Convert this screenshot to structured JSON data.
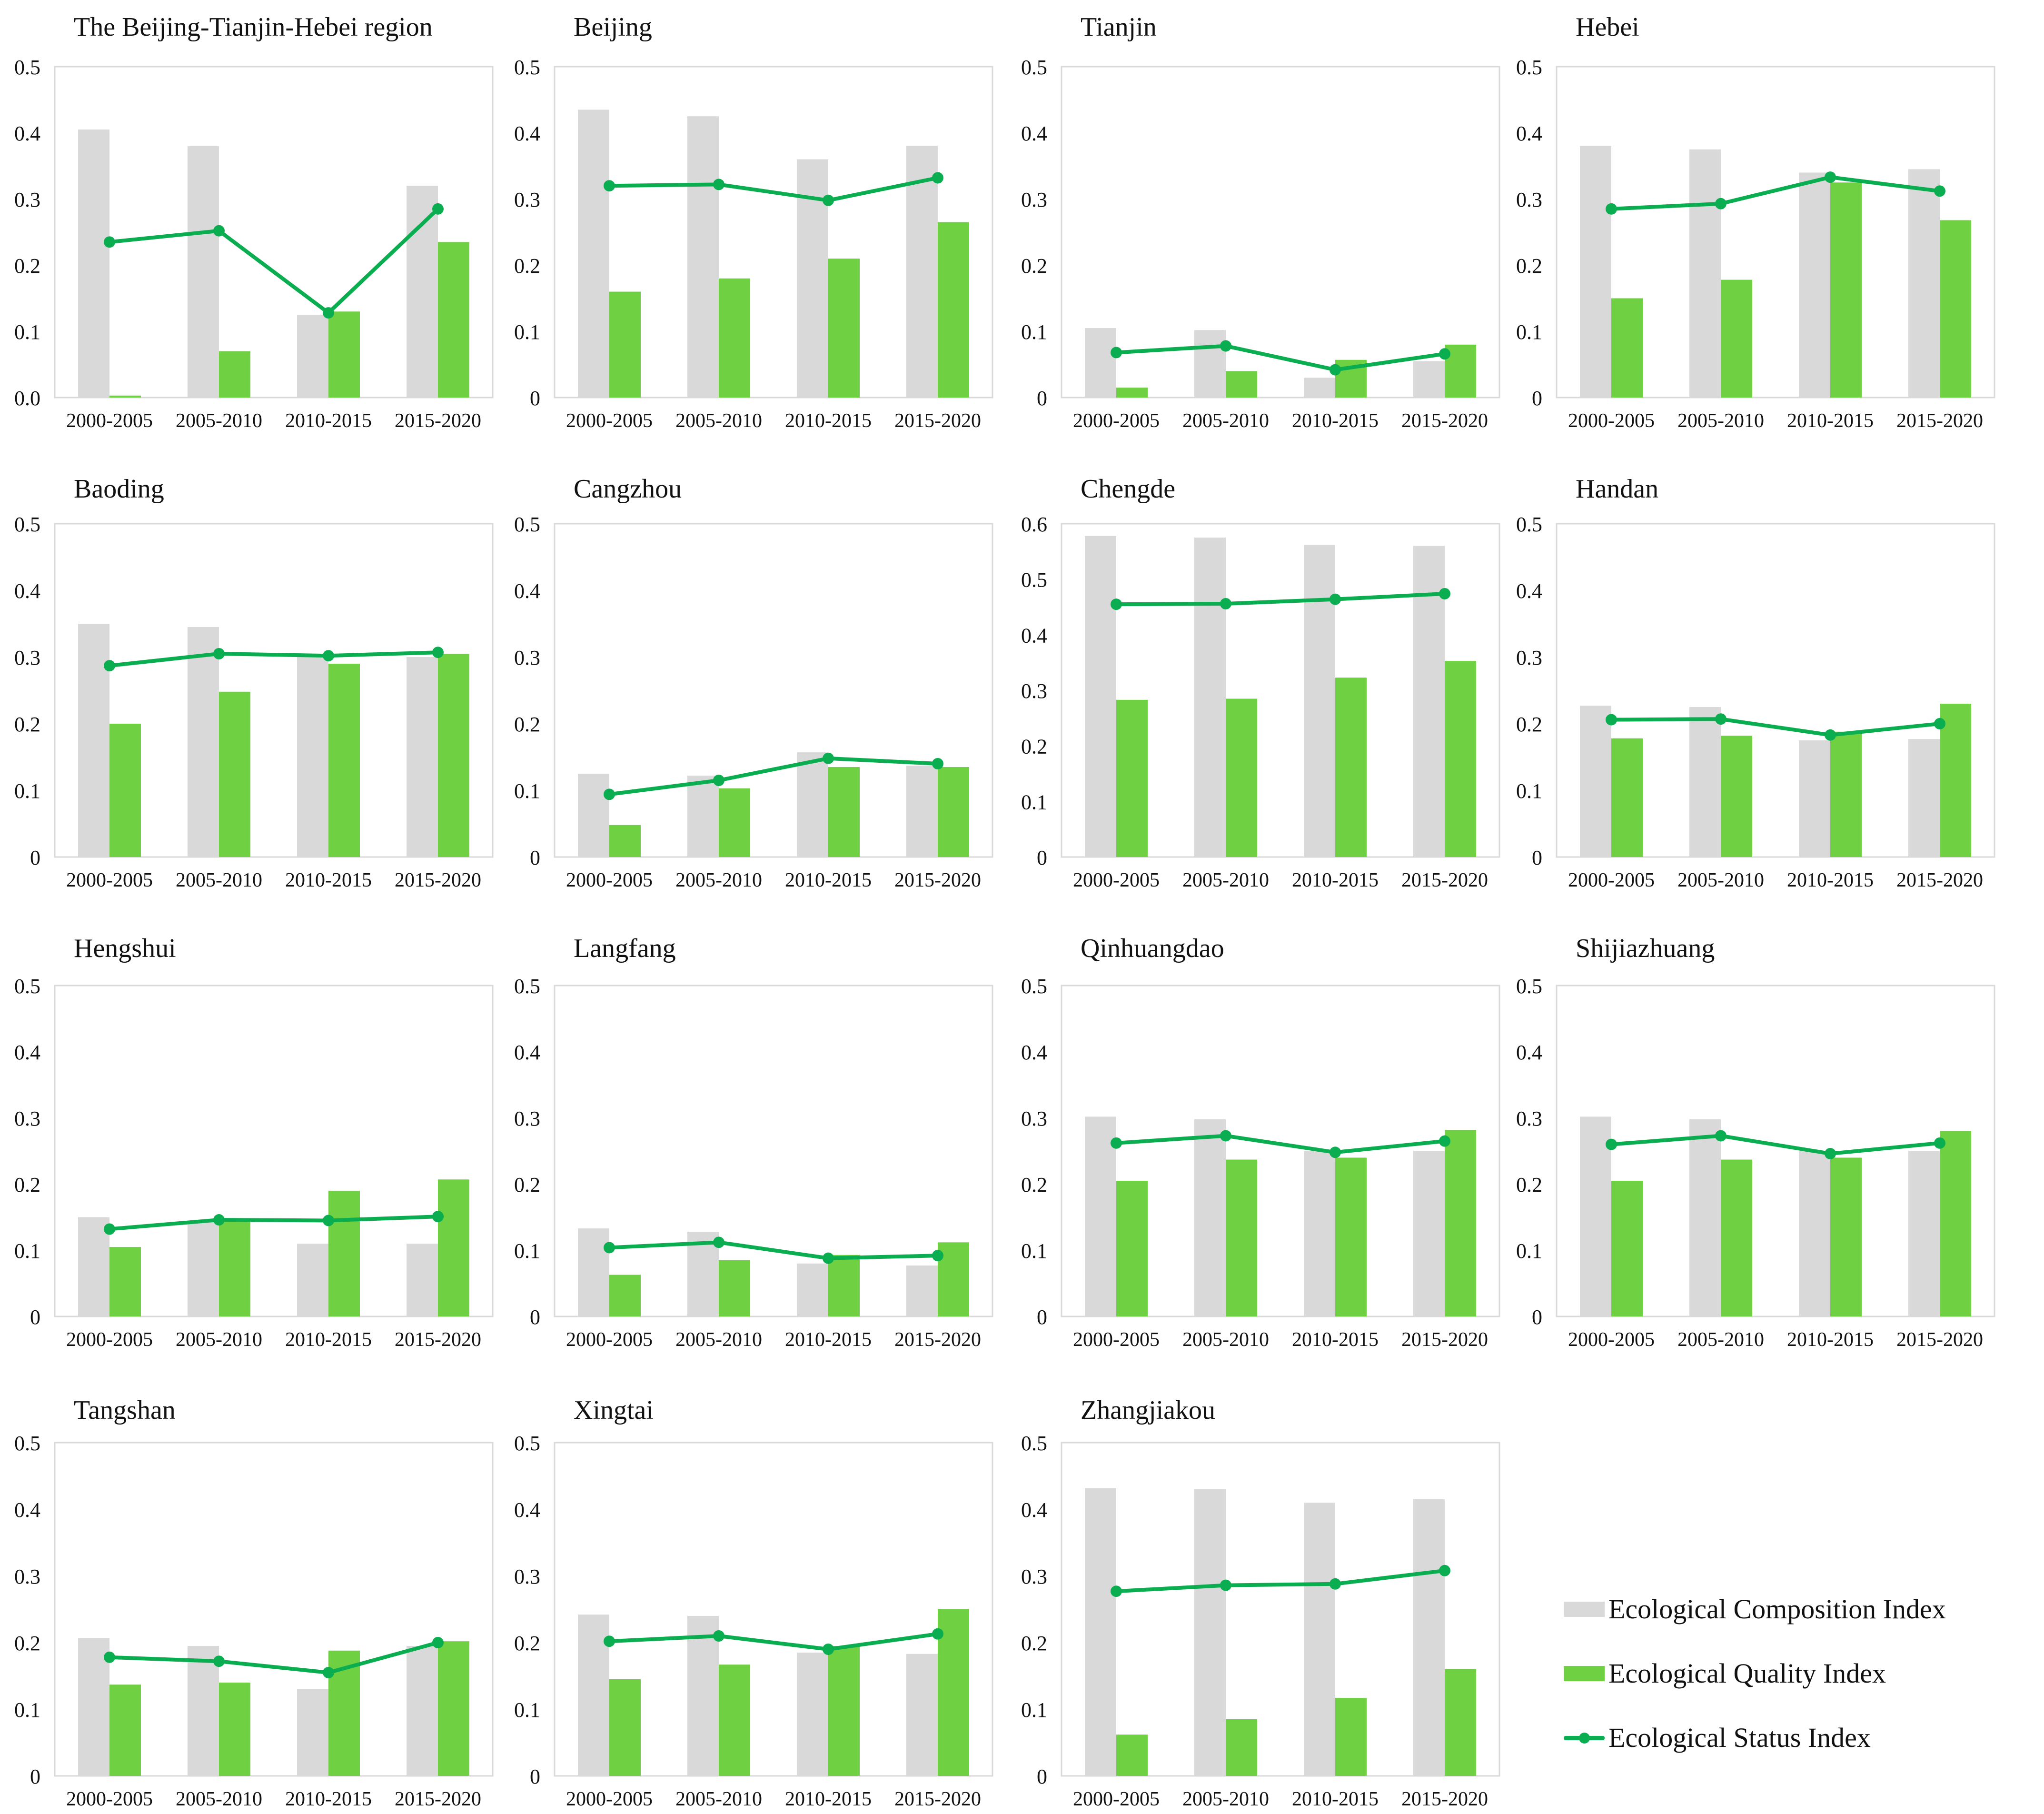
{
  "colors": {
    "composition": "#d9d9d9",
    "quality": "#6fd142",
    "status": "#0aad4f",
    "frame": "#d9d9d9",
    "text": "#111111"
  },
  "legend": {
    "composition_label": "Ecological Composition Index",
    "quality_label": "Ecological Quality Index",
    "status_label": "Ecological Status Index"
  },
  "chart_data": [
    {
      "type": "bar+line",
      "title": "The Beijing-Tianjin-Hebei region",
      "categories": [
        "2000-2005",
        "2005-2010",
        "2010-2015",
        "2015-2020"
      ],
      "ylim": [
        0,
        0.5
      ],
      "ticks": [
        "0.0",
        "0.1",
        "0.2",
        "0.3",
        "0.4",
        "0.5"
      ],
      "series": [
        {
          "name": "Ecological Composition Index",
          "values": [
            0.405,
            0.38,
            0.125,
            0.32
          ]
        },
        {
          "name": "Ecological Quality Index",
          "values": [
            0.003,
            0.07,
            0.13,
            0.235
          ]
        },
        {
          "name": "Ecological Status Index",
          "values": [
            0.235,
            0.252,
            0.128,
            0.285
          ]
        }
      ]
    },
    {
      "type": "bar+line",
      "title": "Beijing",
      "categories": [
        "2000-2005",
        "2005-2010",
        "2010-2015",
        "2015-2020"
      ],
      "ylim": [
        0,
        0.5
      ],
      "ticks": [
        "0",
        "0.1",
        "0.2",
        "0.3",
        "0.4",
        "0.5"
      ],
      "series": [
        {
          "name": "Ecological Composition Index",
          "values": [
            0.435,
            0.425,
            0.36,
            0.38
          ]
        },
        {
          "name": "Ecological Quality Index",
          "values": [
            0.16,
            0.18,
            0.21,
            0.265
          ]
        },
        {
          "name": "Ecological Status Index",
          "values": [
            0.32,
            0.322,
            0.298,
            0.332
          ]
        }
      ]
    },
    {
      "type": "bar+line",
      "title": "Tianjin",
      "categories": [
        "2000-2005",
        "2005-2010",
        "2010-2015",
        "2015-2020"
      ],
      "ylim": [
        0,
        0.5
      ],
      "ticks": [
        "0",
        "0.1",
        "0.2",
        "0.3",
        "0.4",
        "0.5"
      ],
      "series": [
        {
          "name": "Ecological Composition Index",
          "values": [
            0.105,
            0.102,
            0.03,
            0.055
          ]
        },
        {
          "name": "Ecological Quality Index",
          "values": [
            0.015,
            0.04,
            0.057,
            0.08
          ]
        },
        {
          "name": "Ecological Status Index",
          "values": [
            0.068,
            0.078,
            0.042,
            0.066
          ]
        }
      ]
    },
    {
      "type": "bar+line",
      "title": "Hebei",
      "categories": [
        "2000-2005",
        "2005-2010",
        "2010-2015",
        "2015-2020"
      ],
      "ylim": [
        0,
        0.5
      ],
      "ticks": [
        "0",
        "0.1",
        "0.2",
        "0.3",
        "0.4",
        "0.5"
      ],
      "series": [
        {
          "name": "Ecological Composition Index",
          "values": [
            0.38,
            0.375,
            0.34,
            0.345
          ]
        },
        {
          "name": "Ecological Quality Index",
          "values": [
            0.15,
            0.178,
            0.325,
            0.268
          ]
        },
        {
          "name": "Ecological Status Index",
          "values": [
            0.285,
            0.293,
            0.333,
            0.312
          ]
        }
      ]
    },
    {
      "type": "bar+line",
      "title": "Baoding",
      "categories": [
        "2000-2005",
        "2005-2010",
        "2010-2015",
        "2015-2020"
      ],
      "ylim": [
        0,
        0.5
      ],
      "ticks": [
        "0",
        "0.1",
        "0.2",
        "0.3",
        "0.4",
        "0.5"
      ],
      "series": [
        {
          "name": "Ecological Composition Index",
          "values": [
            0.35,
            0.345,
            0.3,
            0.3
          ]
        },
        {
          "name": "Ecological Quality Index",
          "values": [
            0.2,
            0.248,
            0.29,
            0.305
          ]
        },
        {
          "name": "Ecological Status Index",
          "values": [
            0.287,
            0.305,
            0.302,
            0.307
          ]
        }
      ]
    },
    {
      "type": "bar+line",
      "title": "Cangzhou",
      "categories": [
        "2000-2005",
        "2005-2010",
        "2010-2015",
        "2015-2020"
      ],
      "ylim": [
        0,
        0.5
      ],
      "ticks": [
        "0",
        "0.1",
        "0.2",
        "0.3",
        "0.4",
        "0.5"
      ],
      "series": [
        {
          "name": "Ecological Composition Index",
          "values": [
            0.125,
            0.122,
            0.157,
            0.137
          ]
        },
        {
          "name": "Ecological Quality Index",
          "values": [
            0.048,
            0.103,
            0.135,
            0.135
          ]
        },
        {
          "name": "Ecological Status Index",
          "values": [
            0.094,
            0.115,
            0.148,
            0.14
          ]
        }
      ]
    },
    {
      "type": "bar+line",
      "title": "Chengde",
      "categories": [
        "2000-2005",
        "2005-2010",
        "2010-2015",
        "2015-2020"
      ],
      "ylim": [
        0,
        0.6
      ],
      "ticks": [
        "0",
        "0.1",
        "0.2",
        "0.3",
        "0.4",
        "0.5",
        "0.6"
      ],
      "series": [
        {
          "name": "Ecological Composition Index",
          "values": [
            0.578,
            0.575,
            0.562,
            0.56
          ]
        },
        {
          "name": "Ecological Quality Index",
          "values": [
            0.283,
            0.285,
            0.323,
            0.353
          ]
        },
        {
          "name": "Ecological Status Index",
          "values": [
            0.455,
            0.456,
            0.464,
            0.474
          ]
        }
      ]
    },
    {
      "type": "bar+line",
      "title": "Handan",
      "categories": [
        "2000-2005",
        "2005-2010",
        "2010-2015",
        "2015-2020"
      ],
      "ylim": [
        0,
        0.5
      ],
      "ticks": [
        "0",
        "0.1",
        "0.2",
        "0.3",
        "0.4",
        "0.5"
      ],
      "series": [
        {
          "name": "Ecological Composition Index",
          "values": [
            0.227,
            0.225,
            0.175,
            0.177
          ]
        },
        {
          "name": "Ecological Quality Index",
          "values": [
            0.178,
            0.182,
            0.188,
            0.23
          ]
        },
        {
          "name": "Ecological Status Index",
          "values": [
            0.206,
            0.207,
            0.183,
            0.2
          ]
        }
      ]
    },
    {
      "type": "bar+line",
      "title": "Hengshui",
      "categories": [
        "2000-2005",
        "2005-2010",
        "2010-2015",
        "2015-2020"
      ],
      "ylim": [
        0,
        0.5
      ],
      "ticks": [
        "0",
        "0.1",
        "0.2",
        "0.3",
        "0.4",
        "0.5"
      ],
      "series": [
        {
          "name": "Ecological Composition Index",
          "values": [
            0.15,
            0.145,
            0.11,
            0.11
          ]
        },
        {
          "name": "Ecological Quality Index",
          "values": [
            0.105,
            0.148,
            0.19,
            0.207
          ]
        },
        {
          "name": "Ecological Status Index",
          "values": [
            0.132,
            0.146,
            0.145,
            0.151
          ]
        }
      ]
    },
    {
      "type": "bar+line",
      "title": "Langfang",
      "categories": [
        "2000-2005",
        "2005-2010",
        "2010-2015",
        "2015-2020"
      ],
      "ylim": [
        0,
        0.5
      ],
      "ticks": [
        "0",
        "0.1",
        "0.2",
        "0.3",
        "0.4",
        "0.5"
      ],
      "series": [
        {
          "name": "Ecological Composition Index",
          "values": [
            0.133,
            0.128,
            0.08,
            0.077
          ]
        },
        {
          "name": "Ecological Quality Index",
          "values": [
            0.063,
            0.085,
            0.093,
            0.112
          ]
        },
        {
          "name": "Ecological Status Index",
          "values": [
            0.104,
            0.112,
            0.088,
            0.092
          ]
        }
      ]
    },
    {
      "type": "bar+line",
      "title": "Qinhuangdao",
      "categories": [
        "2000-2005",
        "2005-2010",
        "2010-2015",
        "2015-2020"
      ],
      "ylim": [
        0,
        0.5
      ],
      "ticks": [
        "0",
        "0.1",
        "0.2",
        "0.3",
        "0.4",
        "0.5"
      ],
      "series": [
        {
          "name": "Ecological Composition Index",
          "values": [
            0.302,
            0.298,
            0.25,
            0.25
          ]
        },
        {
          "name": "Ecological Quality Index",
          "values": [
            0.205,
            0.237,
            0.24,
            0.282
          ]
        },
        {
          "name": "Ecological Status Index",
          "values": [
            0.262,
            0.273,
            0.248,
            0.265
          ]
        }
      ]
    },
    {
      "type": "bar+line",
      "title": "Shijiazhuang",
      "categories": [
        "2000-2005",
        "2005-2010",
        "2010-2015",
        "2015-2020"
      ],
      "ylim": [
        0,
        0.5
      ],
      "ticks": [
        "0",
        "0.1",
        "0.2",
        "0.3",
        "0.4",
        "0.5"
      ],
      "series": [
        {
          "name": "Ecological Composition Index",
          "values": [
            0.302,
            0.298,
            0.25,
            0.25
          ]
        },
        {
          "name": "Ecological Quality Index",
          "values": [
            0.205,
            0.237,
            0.24,
            0.28
          ]
        },
        {
          "name": "Ecological Status Index",
          "values": [
            0.26,
            0.273,
            0.246,
            0.262
          ]
        }
      ]
    },
    {
      "type": "bar+line",
      "title": "Tangshan",
      "categories": [
        "2000-2005",
        "2005-2010",
        "2010-2015",
        "2015-2020"
      ],
      "ylim": [
        0,
        0.5
      ],
      "ticks": [
        "0",
        "0.1",
        "0.2",
        "0.3",
        "0.4",
        "0.5"
      ],
      "series": [
        {
          "name": "Ecological Composition Index",
          "values": [
            0.207,
            0.195,
            0.13,
            0.195
          ]
        },
        {
          "name": "Ecological Quality Index",
          "values": [
            0.137,
            0.14,
            0.188,
            0.202
          ]
        },
        {
          "name": "Ecological Status Index",
          "values": [
            0.178,
            0.172,
            0.155,
            0.2
          ]
        }
      ]
    },
    {
      "type": "bar+line",
      "title": "Xingtai",
      "categories": [
        "2000-2005",
        "2005-2010",
        "2010-2015",
        "2015-2020"
      ],
      "ylim": [
        0,
        0.5
      ],
      "ticks": [
        "0",
        "0.1",
        "0.2",
        "0.3",
        "0.4",
        "0.5"
      ],
      "series": [
        {
          "name": "Ecological Composition Index",
          "values": [
            0.242,
            0.24,
            0.185,
            0.183
          ]
        },
        {
          "name": "Ecological Quality Index",
          "values": [
            0.145,
            0.167,
            0.195,
            0.25
          ]
        },
        {
          "name": "Ecological Status Index",
          "values": [
            0.202,
            0.21,
            0.19,
            0.213
          ]
        }
      ]
    },
    {
      "type": "bar+line",
      "title": "Zhangjiakou",
      "categories": [
        "2000-2005",
        "2005-2010",
        "2010-2015",
        "2015-2020"
      ],
      "ylim": [
        0,
        0.5
      ],
      "ticks": [
        "0",
        "0.1",
        "0.2",
        "0.3",
        "0.4",
        "0.5"
      ],
      "series": [
        {
          "name": "Ecological Composition Index",
          "values": [
            0.432,
            0.43,
            0.41,
            0.415
          ]
        },
        {
          "name": "Ecological Quality Index",
          "values": [
            0.062,
            0.085,
            0.117,
            0.16
          ]
        },
        {
          "name": "Ecological Status Index",
          "values": [
            0.277,
            0.286,
            0.288,
            0.308
          ]
        }
      ]
    }
  ]
}
